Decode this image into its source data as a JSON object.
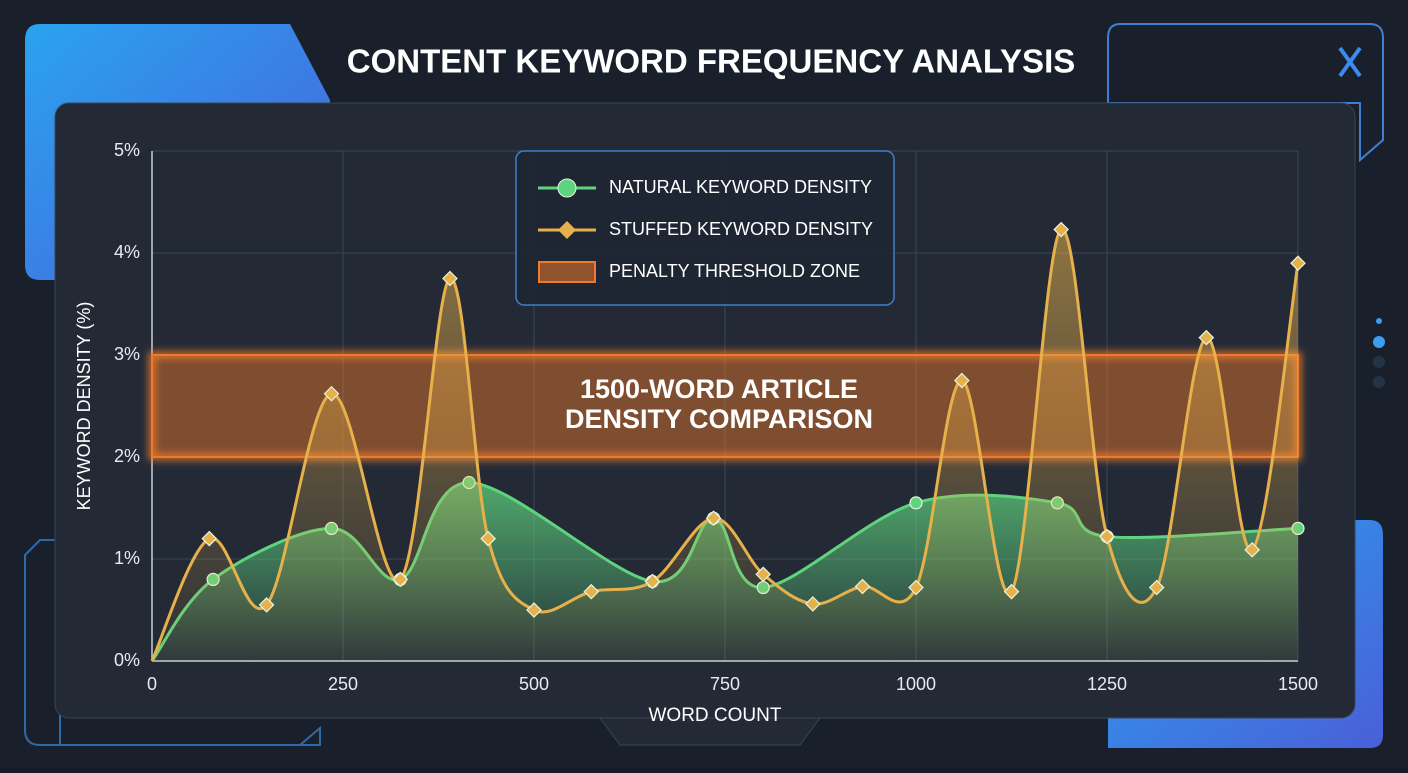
{
  "chart_data": {
    "type": "line",
    "title": "CONTENT KEYWORD FREQUENCY ANALYSIS",
    "xlabel": "WORD COUNT",
    "ylabel": "KEYWORD DENSITY (%)",
    "xlim": [
      0,
      1500
    ],
    "ylim": [
      0,
      5
    ],
    "xticks": [
      0,
      250,
      500,
      750,
      1000,
      1250,
      1500
    ],
    "yticks": [
      {
        "value": 0,
        "label": "0%"
      },
      {
        "value": 1,
        "label": "1%"
      },
      {
        "value": 2,
        "label": "2%"
      },
      {
        "value": 3,
        "label": "3%"
      },
      {
        "value": 4,
        "label": "4%"
      },
      {
        "value": 5,
        "label": "5%"
      }
    ],
    "grid": true,
    "series": [
      {
        "name": "NATURAL KEYWORD DENSITY",
        "color": "#5fd37e",
        "marker": "circle",
        "x": [
          0,
          80,
          235,
          325,
          415,
          655,
          735,
          800,
          1000,
          1185,
          1250,
          1500
        ],
        "values": [
          0,
          0.8,
          1.3,
          0.8,
          1.75,
          0.78,
          1.4,
          0.72,
          1.55,
          1.55,
          1.22,
          1.3
        ]
      },
      {
        "name": "STUFFED KEYWORD DENSITY",
        "color": "#e6b04a",
        "marker": "diamond",
        "x": [
          0,
          75,
          150,
          235,
          325,
          390,
          440,
          500,
          575,
          655,
          735,
          800,
          865,
          930,
          1000,
          1060,
          1125,
          1190,
          1250,
          1315,
          1380,
          1440,
          1500
        ],
        "values": [
          0,
          1.2,
          0.55,
          2.62,
          0.8,
          3.75,
          1.2,
          0.5,
          0.68,
          0.78,
          1.4,
          0.85,
          0.56,
          0.73,
          0.72,
          2.75,
          0.68,
          4.23,
          1.22,
          0.72,
          3.17,
          1.09,
          3.9
        ]
      }
    ],
    "band": {
      "name": "PENALTY THRESHOLD ZONE",
      "range": [
        2,
        3
      ],
      "color": "#f07a2a"
    },
    "annotation": [
      "1500-WORD ARTICLE",
      "DENSITY COMPARISON"
    ]
  }
}
